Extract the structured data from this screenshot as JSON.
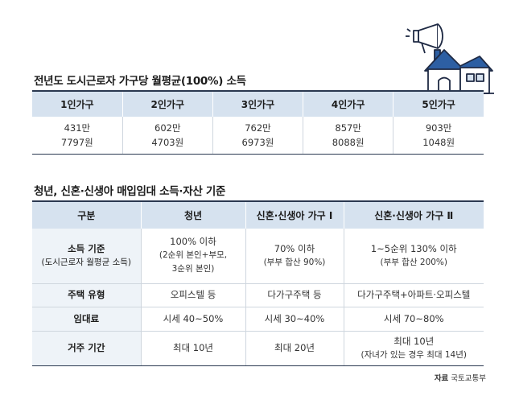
{
  "table1": {
    "title": "전년도 도시근로자 가구당 월평균(100%) 소득",
    "headers": [
      "1인가구",
      "2인가구",
      "3인가구",
      "4인가구",
      "5인가구"
    ],
    "values": [
      {
        "man": "431만",
        "won": "7797원"
      },
      {
        "man": "602만",
        "won": "4703원"
      },
      {
        "man": "762만",
        "won": "6973원"
      },
      {
        "man": "857만",
        "won": "8088원"
      },
      {
        "man": "903만",
        "won": "1048원"
      }
    ]
  },
  "table2": {
    "title": "청년, 신혼·신생아 매입임대 소득·자산 기준",
    "headers": [
      "구분",
      "청년",
      "신혼·신생아 가구 Ⅰ",
      "신혼·신생아 가구 Ⅱ"
    ],
    "rows": {
      "income": {
        "label": "소득 기준",
        "label_sub": "(도시근로자 월평균 소득)",
        "youth_l1": "100% 이하",
        "youth_l2": "(2순위 본인+부모,",
        "youth_l3": "3순위 본인)",
        "n1_l1": "70% 이하",
        "n1_l2": "(부부 합산 90%)",
        "n2_l1": "1~5순위 130% 이하",
        "n2_l2": "(부부 합산 200%)"
      },
      "housing": {
        "label": "주택 유형",
        "youth": "오피스텔 등",
        "n1": "다가구주택 등",
        "n2": "다가구주택+아파트·오피스텔"
      },
      "rent": {
        "label": "임대료",
        "youth": "시세 40~50%",
        "n1": "시세 30~40%",
        "n2": "시세 70~80%"
      },
      "period": {
        "label": "거주 기간",
        "youth": "최대 10년",
        "n1": "최대 20년",
        "n2_l1": "최대 10년",
        "n2_l2": "(자녀가 있는 경우 최대 14년)"
      }
    }
  },
  "source": {
    "label": "자료",
    "value": "국토교통부"
  },
  "illustration": {
    "icons": [
      "megaphone-icon",
      "house-icon"
    ],
    "roof_color": "#2d5fa3",
    "outline_color": "#1f2a44"
  }
}
